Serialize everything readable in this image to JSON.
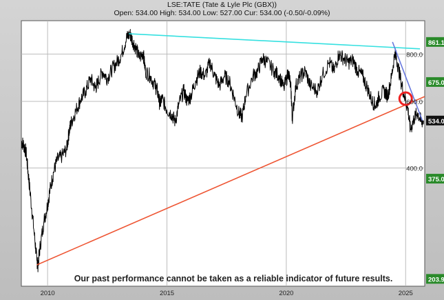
{
  "chart_data": {
    "type": "line",
    "title": "LSE:TATE (Tate & Lyle Plc (GBX))",
    "subtitle": "Open: 534.00 High: 534.00 Low: 527.00 Cur: 534.00 (-0.50/-0.09%)",
    "xlabel": "",
    "ylabel": "",
    "x_ticks": [
      "2010",
      "2015",
      "2020",
      "2025"
    ],
    "y_ticks": [
      "400.0",
      "600.0",
      "800.0"
    ],
    "y_scale": "log",
    "xlim": [
      2008.9,
      2025.8
    ],
    "ylim": [
      195,
      980
    ],
    "grid": true,
    "series": [
      {
        "points": [
          [
            2008.9,
            470
          ],
          [
            2009.0,
            460
          ],
          [
            2009.1,
            440
          ],
          [
            2009.2,
            380
          ],
          [
            2009.3,
            330
          ],
          [
            2009.45,
            265
          ],
          [
            2009.55,
            228
          ],
          [
            2009.6,
            222
          ],
          [
            2009.7,
            252
          ],
          [
            2009.85,
            290
          ],
          [
            2010.0,
            320
          ],
          [
            2010.1,
            350
          ],
          [
            2010.25,
            390
          ],
          [
            2010.4,
            420
          ],
          [
            2010.6,
            430
          ],
          [
            2010.8,
            450
          ],
          [
            2010.9,
            500
          ],
          [
            2011.0,
            530
          ],
          [
            2011.2,
            570
          ],
          [
            2011.4,
            610
          ],
          [
            2011.6,
            640
          ],
          [
            2011.8,
            690
          ],
          [
            2012.0,
            650
          ],
          [
            2012.1,
            670
          ],
          [
            2012.3,
            720
          ],
          [
            2012.5,
            690
          ],
          [
            2012.7,
            730
          ],
          [
            2012.9,
            760
          ],
          [
            2013.1,
            800
          ],
          [
            2013.3,
            880
          ],
          [
            2013.45,
            905
          ],
          [
            2013.55,
            870
          ],
          [
            2013.7,
            830
          ],
          [
            2013.85,
            780
          ],
          [
            2014.0,
            810
          ],
          [
            2014.1,
            720
          ],
          [
            2014.3,
            700
          ],
          [
            2014.5,
            660
          ],
          [
            2014.6,
            640
          ],
          [
            2014.7,
            590
          ],
          [
            2014.8,
            610
          ],
          [
            2015.0,
            570
          ],
          [
            2015.2,
            555
          ],
          [
            2015.35,
            530
          ],
          [
            2015.5,
            590
          ],
          [
            2015.7,
            640
          ],
          [
            2015.85,
            600
          ],
          [
            2016.0,
            620
          ],
          [
            2016.2,
            680
          ],
          [
            2016.4,
            720
          ],
          [
            2016.6,
            700
          ],
          [
            2016.8,
            760
          ],
          [
            2017.0,
            700
          ],
          [
            2017.2,
            660
          ],
          [
            2017.4,
            700
          ],
          [
            2017.6,
            680
          ],
          [
            2017.8,
            620
          ],
          [
            2018.0,
            560
          ],
          [
            2018.15,
            545
          ],
          [
            2018.3,
            620
          ],
          [
            2018.6,
            700
          ],
          [
            2018.8,
            720
          ],
          [
            2019.0,
            780
          ],
          [
            2019.2,
            760
          ],
          [
            2019.5,
            720
          ],
          [
            2019.7,
            700
          ],
          [
            2019.9,
            650
          ],
          [
            2020.1,
            720
          ],
          [
            2020.2,
            640
          ],
          [
            2020.25,
            540
          ],
          [
            2020.4,
            660
          ],
          [
            2020.6,
            700
          ],
          [
            2020.8,
            720
          ],
          [
            2021.0,
            660
          ],
          [
            2021.3,
            640
          ],
          [
            2021.5,
            700
          ],
          [
            2021.8,
            760
          ],
          [
            2022.0,
            720
          ],
          [
            2022.2,
            800
          ],
          [
            2022.4,
            780
          ],
          [
            2022.6,
            760
          ],
          [
            2022.8,
            770
          ],
          [
            2023.0,
            720
          ],
          [
            2023.2,
            700
          ],
          [
            2023.4,
            650
          ],
          [
            2023.6,
            600
          ],
          [
            2023.75,
            585
          ],
          [
            2023.9,
            620
          ],
          [
            2024.1,
            640
          ],
          [
            2024.25,
            620
          ],
          [
            2024.4,
            690
          ],
          [
            2024.55,
            810
          ],
          [
            2024.65,
            760
          ],
          [
            2024.8,
            680
          ],
          [
            2024.95,
            620
          ],
          [
            2025.1,
            570
          ],
          [
            2025.2,
            505
          ],
          [
            2025.35,
            540
          ],
          [
            2025.5,
            560
          ],
          [
            2025.65,
            530
          ],
          [
            2025.75,
            534
          ]
        ]
      }
    ],
    "lines": [
      {
        "color": "#35e0e0",
        "from": [
          2013.4,
          905
        ],
        "to": [
          2025.6,
          826
        ]
      },
      {
        "color": "#ee5533",
        "from": [
          2009.55,
          222
        ],
        "to": [
          2025.8,
          618
        ]
      },
      {
        "color": "#6677dd",
        "from": [
          2024.45,
          861
        ],
        "to": [
          2025.7,
          534
        ]
      }
    ],
    "marker": {
      "type": "circle",
      "color": "#ee2222",
      "at": [
        2025.0,
        610
      ]
    },
    "price_labels": [
      {
        "label": "861.1",
        "value": 861.1,
        "color": "#2a8a2a"
      },
      {
        "label": "675.0",
        "value": 675.0,
        "color": "#2a8a2a"
      },
      {
        "label": "534.0",
        "value": 534.0,
        "color": "#111111"
      },
      {
        "label": "375.0",
        "value": 375.0,
        "color": "#2a8a2a"
      },
      {
        "label": "203.9",
        "value": 203.9,
        "color": "#2a8a2a"
      }
    ],
    "annotation": "Our past performance cannot be taken as a reliable indicator of future results."
  }
}
